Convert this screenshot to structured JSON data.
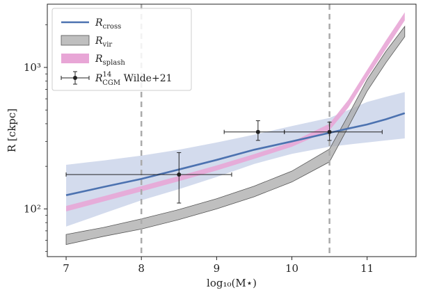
{
  "chart_data": {
    "type": "line",
    "title": "",
    "xlabel": "log₁₀(M⋆)",
    "ylabel": "R [ckpc]",
    "xlim": [
      6.75,
      11.65
    ],
    "ylim": [
      46,
      2800
    ],
    "yscale": "log",
    "grid": false,
    "legend_position": "top-left",
    "x_ticks": [
      {
        "v": 7,
        "label": "7"
      },
      {
        "v": 8,
        "label": "8"
      },
      {
        "v": 9,
        "label": "9"
      },
      {
        "v": 10,
        "label": "10"
      },
      {
        "v": 11,
        "label": "11"
      }
    ],
    "y_ticks_major": [
      {
        "v": 100,
        "label": "10²"
      },
      {
        "v": 1000,
        "label": "10³"
      }
    ],
    "vertical_lines": [
      8.0,
      10.5
    ],
    "x": [
      7.0,
      7.5,
      8.0,
      8.5,
      9.0,
      9.5,
      10.0,
      10.5,
      10.75,
      11.0,
      11.25,
      11.5
    ],
    "series": [
      {
        "name": "R_cross",
        "kind": "line",
        "color": "#4c72b0",
        "values": [
          125,
          143,
          163,
          190,
          222,
          262,
          300,
          345,
          370,
          395,
          430,
          475
        ],
        "band_lower": [
          75,
          93,
          115,
          138,
          168,
          208,
          245,
          275,
          285,
          295,
          305,
          315
        ],
        "band_upper": [
          205,
          220,
          238,
          262,
          295,
          335,
          385,
          440,
          500,
          570,
          620,
          670
        ],
        "band_color": "#cbd5ea"
      },
      {
        "name": "R_vir",
        "kind": "band",
        "color": "#999999",
        "band_lower": [
          56,
          64,
          72,
          84,
          100,
          122,
          155,
          215,
          380,
          680,
          1080,
          1650
        ],
        "band_upper": [
          66,
          74,
          85,
          99,
          118,
          145,
          185,
          265,
          460,
          820,
          1300,
          1950
        ]
      },
      {
        "name": "R_splash",
        "kind": "band",
        "color": "#e8a6d6",
        "band_lower": [
          96,
          113,
          133,
          157,
          187,
          226,
          275,
          360,
          520,
          850,
          1350,
          2150
        ],
        "band_upper": [
          105,
          123,
          145,
          171,
          203,
          244,
          297,
          400,
          590,
          960,
          1550,
          2450
        ]
      }
    ],
    "errorbars": {
      "name": "R_CGM Wilde+21",
      "color": "#222222",
      "points": [
        {
          "x": 8.5,
          "y": 175,
          "xerr_low": 1.5,
          "xerr_high": 0.7,
          "yerr_low": 65,
          "yerr_high": 75
        },
        {
          "x": 9.55,
          "y": 350,
          "xerr_low": 0.45,
          "xerr_high": 0.35,
          "yerr_low": 45,
          "yerr_high": 70
        },
        {
          "x": 10.5,
          "y": 350,
          "xerr_low": 0.6,
          "xerr_high": 0.7,
          "yerr_low": 45,
          "yerr_high": 60
        }
      ]
    }
  },
  "legend": [
    {
      "key": "cross",
      "base": "R",
      "sub": "cross",
      "sup": ""
    },
    {
      "key": "vir",
      "base": "R",
      "sub": "vir",
      "sup": ""
    },
    {
      "key": "splash",
      "base": "R",
      "sub": "splash",
      "sup": ""
    },
    {
      "key": "cgm",
      "base": "R",
      "sub": "CGM",
      "sup": "14",
      "suffix": " Wilde+21"
    }
  ]
}
